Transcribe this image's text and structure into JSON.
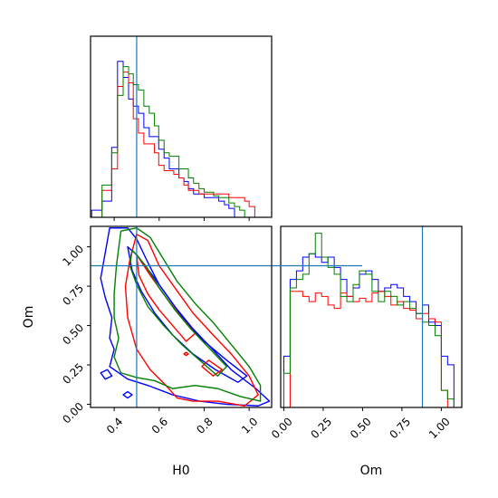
{
  "chart_data": {
    "type": "corner",
    "colors": {
      "run_1": "#0000ff",
      "run_2": "#ff0000",
      "run_3": "#008000",
      "truth": "#1f77b4"
    },
    "truth": {
      "H0": 0.5,
      "Om": 0.88
    },
    "params": [
      {
        "name": "H0",
        "label": "H0",
        "range": [
          0.295,
          1.1
        ],
        "ticks": [
          0.4,
          0.6,
          0.8,
          1.0
        ],
        "tick_labels": [
          "0.4",
          "0.6",
          "0.8",
          "1.0"
        ]
      },
      {
        "name": "Om",
        "label": "Om",
        "range": [
          -0.02,
          1.13
        ],
        "ticks": [
          0.0,
          0.25,
          0.5,
          0.75,
          1.0
        ],
        "tick_labels": [
          "0.00",
          "0.25",
          "0.50",
          "0.75",
          "1.00"
        ]
      }
    ],
    "panels": [
      {
        "type": "histogram",
        "param": "H0",
        "ylim": [
          0,
          1.0
        ],
        "bin_edges": [
          0.3,
          0.346,
          0.389,
          0.415,
          0.44,
          0.464,
          0.485,
          0.508,
          0.532,
          0.556,
          0.579,
          0.598,
          0.622,
          0.645,
          0.665,
          0.688,
          0.71,
          0.73,
          0.753,
          0.777,
          0.8,
          0.82,
          0.842,
          0.865,
          0.89,
          0.91,
          0.935,
          0.958,
          0.98,
          1.0,
          1.025,
          1.05,
          1.08
        ],
        "series": [
          {
            "name": "",
            "color": "run_1",
            "values": [
              0.04,
              0.09,
              0.39,
              0.87,
              0.78,
              0.66,
              0.62,
              0.58,
              0.5,
              0.45,
              0.45,
              0.38,
              0.33,
              0.27,
              0.27,
              0.22,
              0.2,
              0.16,
              0.13,
              0.13,
              0.11,
              0.11,
              0.11,
              0.09,
              0.07,
              0.05,
              0.0,
              0.0,
              0.0,
              0.0,
              0.0,
              0.0
            ]
          },
          {
            "name": "",
            "color": "run_2",
            "values": [
              0.0,
              0.15,
              0.27,
              0.73,
              0.81,
              0.75,
              0.55,
              0.47,
              0.41,
              0.41,
              0.36,
              0.29,
              0.26,
              0.26,
              0.24,
              0.22,
              0.18,
              0.15,
              0.15,
              0.13,
              0.13,
              0.13,
              0.13,
              0.13,
              0.13,
              0.11,
              0.11,
              0.11,
              0.09,
              0.06,
              0.0,
              0.0
            ]
          },
          {
            "name": "",
            "color": "run_3",
            "values": [
              0.0,
              0.18,
              0.36,
              0.68,
              0.84,
              0.8,
              0.74,
              0.71,
              0.62,
              0.58,
              0.51,
              0.43,
              0.36,
              0.34,
              0.34,
              0.27,
              0.27,
              0.22,
              0.19,
              0.16,
              0.14,
              0.14,
              0.12,
              0.11,
              0.11,
              0.08,
              0.06,
              0.04,
              0.0,
              0.0,
              0.0,
              0.0
            ]
          }
        ]
      },
      {
        "type": "histogram",
        "param": "Om",
        "ylim": [
          0,
          1.05
        ],
        "bin_edges": [
          0.0,
          0.04,
          0.08,
          0.12,
          0.16,
          0.2,
          0.24,
          0.28,
          0.32,
          0.36,
          0.4,
          0.44,
          0.48,
          0.52,
          0.56,
          0.6,
          0.64,
          0.68,
          0.72,
          0.76,
          0.8,
          0.84,
          0.88,
          0.92,
          0.96,
          1.0,
          1.04,
          1.08,
          1.12
        ],
        "series": [
          {
            "name": "",
            "color": "run_1",
            "values": [
              0.3,
              0.75,
              0.8,
              0.88,
              0.9,
              0.88,
              0.85,
              0.88,
              0.82,
              0.75,
              0.65,
              0.7,
              0.78,
              0.8,
              0.75,
              0.68,
              0.7,
              0.72,
              0.7,
              0.65,
              0.62,
              0.55,
              0.6,
              0.5,
              0.48,
              0.3,
              0.25,
              0.0
            ]
          },
          {
            "name": "",
            "color": "run_2",
            "values": [
              0.0,
              0.68,
              0.68,
              0.65,
              0.62,
              0.67,
              0.65,
              0.6,
              0.58,
              0.67,
              0.65,
              0.62,
              0.64,
              0.62,
              0.67,
              0.68,
              0.65,
              0.6,
              0.62,
              0.58,
              0.57,
              0.52,
              0.55,
              0.52,
              0.5,
              0.1,
              0.0,
              0.0
            ]
          },
          {
            "name": "",
            "color": "run_3",
            "values": [
              0.2,
              0.7,
              0.75,
              0.78,
              0.9,
              1.02,
              0.88,
              0.82,
              0.78,
              0.65,
              0.62,
              0.72,
              0.8,
              0.78,
              0.68,
              0.62,
              0.68,
              0.65,
              0.6,
              0.62,
              0.58,
              0.55,
              0.5,
              0.48,
              0.42,
              0.1,
              0.05,
              0.0
            ]
          }
        ]
      },
      {
        "type": "contour",
        "x": "H0",
        "y": "Om",
        "contours": [
          {
            "color": "run_1",
            "level": "outer",
            "points": [
              [
                0.38,
                1.12
              ],
              [
                0.46,
                1.12
              ],
              [
                0.5,
                1.05
              ],
              [
                0.55,
                0.9
              ],
              [
                0.6,
                0.76
              ],
              [
                0.67,
                0.62
              ],
              [
                0.75,
                0.48
              ],
              [
                0.83,
                0.36
              ],
              [
                0.92,
                0.22
              ],
              [
                1.03,
                0.1
              ],
              [
                1.09,
                0.02
              ],
              [
                1.04,
                -0.01
              ],
              [
                0.9,
                0.0
              ],
              [
                0.78,
                0.02
              ],
              [
                0.66,
                0.06
              ],
              [
                0.55,
                0.12
              ],
              [
                0.46,
                0.16
              ],
              [
                0.38,
                0.24
              ],
              [
                0.4,
                0.35
              ],
              [
                0.38,
                0.42
              ],
              [
                0.39,
                0.55
              ],
              [
                0.36,
                0.68
              ],
              [
                0.34,
                0.8
              ],
              [
                0.36,
                0.96
              ],
              [
                0.38,
                1.12
              ]
            ]
          },
          {
            "color": "run_1",
            "level": "inner",
            "points": [
              [
                0.46,
                1.0
              ],
              [
                0.5,
                0.95
              ],
              [
                0.57,
                0.82
              ],
              [
                0.64,
                0.68
              ],
              [
                0.72,
                0.52
              ],
              [
                0.8,
                0.4
              ],
              [
                0.9,
                0.28
              ],
              [
                0.99,
                0.18
              ],
              [
                0.95,
                0.14
              ],
              [
                0.85,
                0.22
              ],
              [
                0.75,
                0.32
              ],
              [
                0.66,
                0.44
              ],
              [
                0.58,
                0.58
              ],
              [
                0.52,
                0.72
              ],
              [
                0.48,
                0.85
              ],
              [
                0.46,
                1.0
              ]
            ]
          },
          {
            "color": "run_1",
            "level": "island",
            "points": [
              [
                0.34,
                0.2
              ],
              [
                0.37,
                0.22
              ],
              [
                0.39,
                0.18
              ],
              [
                0.36,
                0.16
              ],
              [
                0.34,
                0.2
              ]
            ]
          },
          {
            "color": "run_1",
            "level": "island",
            "points": [
              [
                0.44,
                0.06
              ],
              [
                0.46,
                0.08
              ],
              [
                0.48,
                0.06
              ],
              [
                0.46,
                0.04
              ],
              [
                0.44,
                0.06
              ]
            ]
          },
          {
            "color": "run_2",
            "level": "outer",
            "points": [
              [
                0.5,
                1.08
              ],
              [
                0.55,
                1.04
              ],
              [
                0.6,
                0.88
              ],
              [
                0.68,
                0.72
              ],
              [
                0.75,
                0.58
              ],
              [
                0.84,
                0.44
              ],
              [
                0.92,
                0.32
              ],
              [
                1.0,
                0.18
              ],
              [
                1.04,
                0.06
              ],
              [
                0.98,
                -0.01
              ],
              [
                0.86,
                0.02
              ],
              [
                0.75,
                0.02
              ],
              [
                0.68,
                0.04
              ],
              [
                0.63,
                0.12
              ],
              [
                0.56,
                0.22
              ],
              [
                0.5,
                0.35
              ],
              [
                0.46,
                0.55
              ],
              [
                0.45,
                0.75
              ],
              [
                0.47,
                0.92
              ],
              [
                0.5,
                1.08
              ]
            ]
          },
          {
            "color": "run_2",
            "level": "inner",
            "points": [
              [
                0.5,
                0.95
              ],
              [
                0.56,
                0.82
              ],
              [
                0.63,
                0.68
              ],
              [
                0.7,
                0.55
              ],
              [
                0.76,
                0.45
              ],
              [
                0.72,
                0.4
              ],
              [
                0.66,
                0.5
              ],
              [
                0.6,
                0.6
              ],
              [
                0.55,
                0.7
              ],
              [
                0.51,
                0.82
              ],
              [
                0.5,
                0.95
              ]
            ]
          },
          {
            "color": "run_2",
            "level": "inner",
            "points": [
              [
                0.82,
                0.28
              ],
              [
                0.88,
                0.22
              ],
              [
                0.84,
                0.18
              ],
              [
                0.79,
                0.24
              ],
              [
                0.82,
                0.28
              ]
            ]
          },
          {
            "color": "run_2",
            "level": "island",
            "points": [
              [
                0.71,
                0.32
              ],
              [
                0.72,
                0.33
              ],
              [
                0.73,
                0.32
              ],
              [
                0.72,
                0.31
              ],
              [
                0.71,
                0.32
              ]
            ]
          },
          {
            "color": "run_3",
            "level": "outer",
            "points": [
              [
                0.43,
                1.1
              ],
              [
                0.5,
                1.12
              ],
              [
                0.56,
                1.06
              ],
              [
                0.62,
                0.92
              ],
              [
                0.68,
                0.78
              ],
              [
                0.76,
                0.64
              ],
              [
                0.84,
                0.52
              ],
              [
                0.92,
                0.38
              ],
              [
                1.0,
                0.24
              ],
              [
                1.05,
                0.12
              ],
              [
                1.05,
                0.02
              ],
              [
                0.96,
                0.05
              ],
              [
                0.86,
                0.1
              ],
              [
                0.76,
                0.12
              ],
              [
                0.66,
                0.1
              ],
              [
                0.58,
                0.15
              ],
              [
                0.5,
                0.17
              ],
              [
                0.43,
                0.2
              ],
              [
                0.4,
                0.3
              ],
              [
                0.42,
                0.42
              ],
              [
                0.4,
                0.55
              ],
              [
                0.4,
                0.7
              ],
              [
                0.41,
                0.88
              ],
              [
                0.43,
                1.1
              ]
            ]
          },
          {
            "color": "run_3",
            "level": "inner",
            "points": [
              [
                0.48,
                0.98
              ],
              [
                0.54,
                0.88
              ],
              [
                0.6,
                0.74
              ],
              [
                0.67,
                0.6
              ],
              [
                0.74,
                0.48
              ],
              [
                0.82,
                0.36
              ],
              [
                0.9,
                0.24
              ],
              [
                0.86,
                0.18
              ],
              [
                0.78,
                0.28
              ],
              [
                0.7,
                0.38
              ],
              [
                0.62,
                0.5
              ],
              [
                0.55,
                0.62
              ],
              [
                0.5,
                0.76
              ],
              [
                0.47,
                0.88
              ],
              [
                0.48,
                0.98
              ]
            ]
          }
        ]
      }
    ]
  }
}
